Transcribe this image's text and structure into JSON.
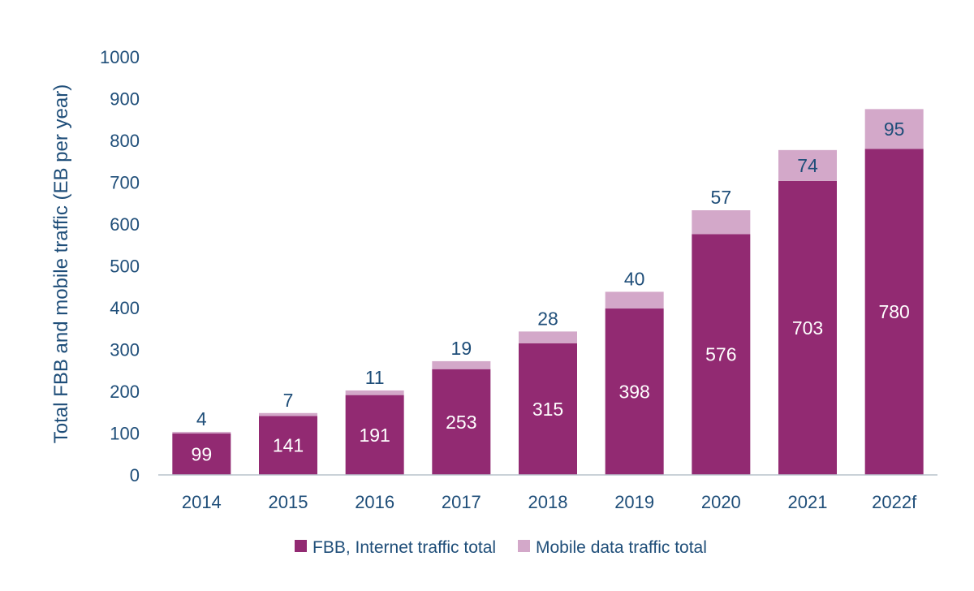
{
  "chart_data": {
    "type": "bar",
    "stacked": true,
    "ylabel": "Total FBB and mobile traffic (EB per year)",
    "xlabel": "",
    "ylim": [
      0,
      1000
    ],
    "yticks": [
      0,
      100,
      200,
      300,
      400,
      500,
      600,
      700,
      800,
      900,
      1000
    ],
    "categories": [
      "2014",
      "2015",
      "2016",
      "2017",
      "2018",
      "2019",
      "2020",
      "2021",
      "2022f"
    ],
    "series": [
      {
        "name": "FBB, Internet traffic total",
        "color": "#922a72",
        "values": [
          99,
          141,
          191,
          253,
          315,
          398,
          576,
          703,
          780
        ]
      },
      {
        "name": "Mobile data traffic total",
        "color": "#d3a8c9",
        "values": [
          4,
          7,
          11,
          19,
          28,
          40,
          57,
          74,
          95
        ]
      }
    ],
    "legend_position": "bottom",
    "grid": false
  }
}
